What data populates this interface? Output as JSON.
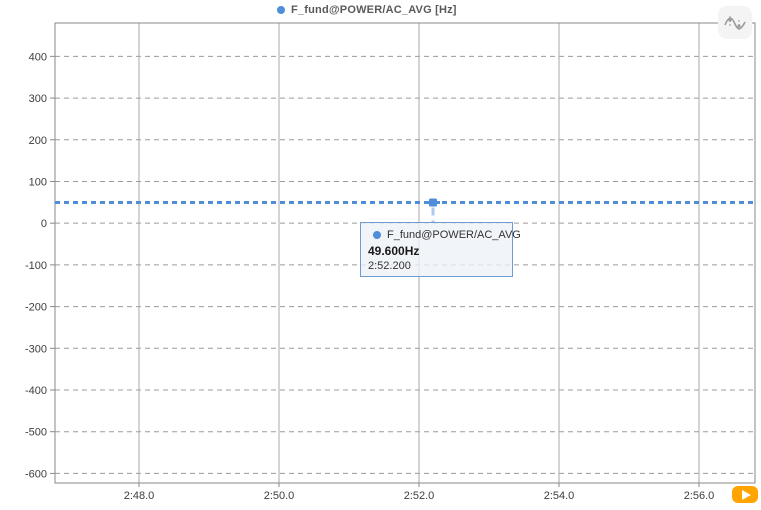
{
  "legend": {
    "label": "F_fund@POWER/AC_AVG [Hz]"
  },
  "chart_data": {
    "type": "line",
    "title": "",
    "series": [
      {
        "name": "F_fund@POWER/AC_AVG",
        "unit": "Hz",
        "constant_value": 49.6,
        "color": "#4f8ed8",
        "line_style": "dashed"
      }
    ],
    "x_ticks": [
      {
        "seconds": 168,
        "label": "2:48.0"
      },
      {
        "seconds": 170,
        "label": "2:50.0"
      },
      {
        "seconds": 172,
        "label": "2:52.0"
      },
      {
        "seconds": 174,
        "label": "2:54.0"
      },
      {
        "seconds": 176,
        "label": "2:56.0"
      }
    ],
    "x_range_seconds": [
      166.8,
      176.8
    ],
    "y_ticks": [
      400,
      300,
      200,
      100,
      0,
      -100,
      -200,
      -300,
      -400,
      -500,
      -600
    ],
    "y_range": [
      480,
      -623
    ],
    "grid": {
      "horizontal": "dashed",
      "vertical": "solid"
    },
    "legend_position": "top-center",
    "cursor": {
      "time_seconds": 172.2,
      "time_label": "2:52.200",
      "value": 49.6,
      "value_label": "49.600Hz"
    }
  },
  "tooltip": {
    "series_label": "F_fund@POWER/AC_AVG",
    "value": "49.600Hz",
    "time": "2:52.200"
  },
  "toolbar": {
    "icon": "signal-cursor-icon"
  },
  "player": {
    "icon": "play-icon"
  },
  "colors": {
    "series_blue": "#4f8ed8",
    "connector_blue": "#a9c9ed",
    "grid_dashed": "#9c9c9c",
    "grid_vertical": "#a8a8a8",
    "frame": "#8a8a8a",
    "tick_text": "#3d3d3d",
    "legend_text": "#595959",
    "tooltip_border": "#6f9bd1",
    "tooltip_bg": "#edf1f6",
    "play_button": "#ffa400",
    "icon_glyph": "#9a9a9a"
  }
}
